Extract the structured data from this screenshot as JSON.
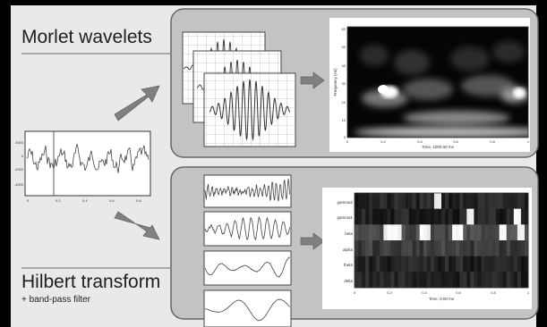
{
  "slide": {
    "morlet_title": "Morlet wavelets",
    "hilbert_title": "Hilbert transform",
    "hilbert_subtitle": "+ band-pass filter"
  },
  "signal_plot": {
    "y_ticks": [
      "2000",
      "0",
      "-2000",
      "-4000"
    ],
    "x_ticks": [
      "0",
      "0.2",
      "0.4",
      "0.6",
      "0.8"
    ]
  },
  "morlet_spectrogram": {
    "y_ticks": [
      "60",
      "50",
      "40",
      "30",
      "20",
      "10",
      "0"
    ],
    "x_ticks": [
      "0",
      "0.2",
      "0.4",
      "0.6",
      "0.8",
      "1"
    ],
    "ylabel": "Frequency (Hz)",
    "xlabel": "Time, 1000.00 ms"
  },
  "hilbert_heatmap": {
    "bands": [
      "gamma2",
      "gamma1",
      "beta",
      "alpha",
      "theta",
      "delta"
    ],
    "x_ticks": [
      "0",
      "0.2",
      "0.4",
      "0.6",
      "0.8",
      "1"
    ],
    "xlabel": "Time, 0.00 ms"
  },
  "colors": {
    "background": "#000000",
    "slide": "#e9e9e9",
    "panel": "#c3c3c3",
    "arrow": "#808080"
  }
}
